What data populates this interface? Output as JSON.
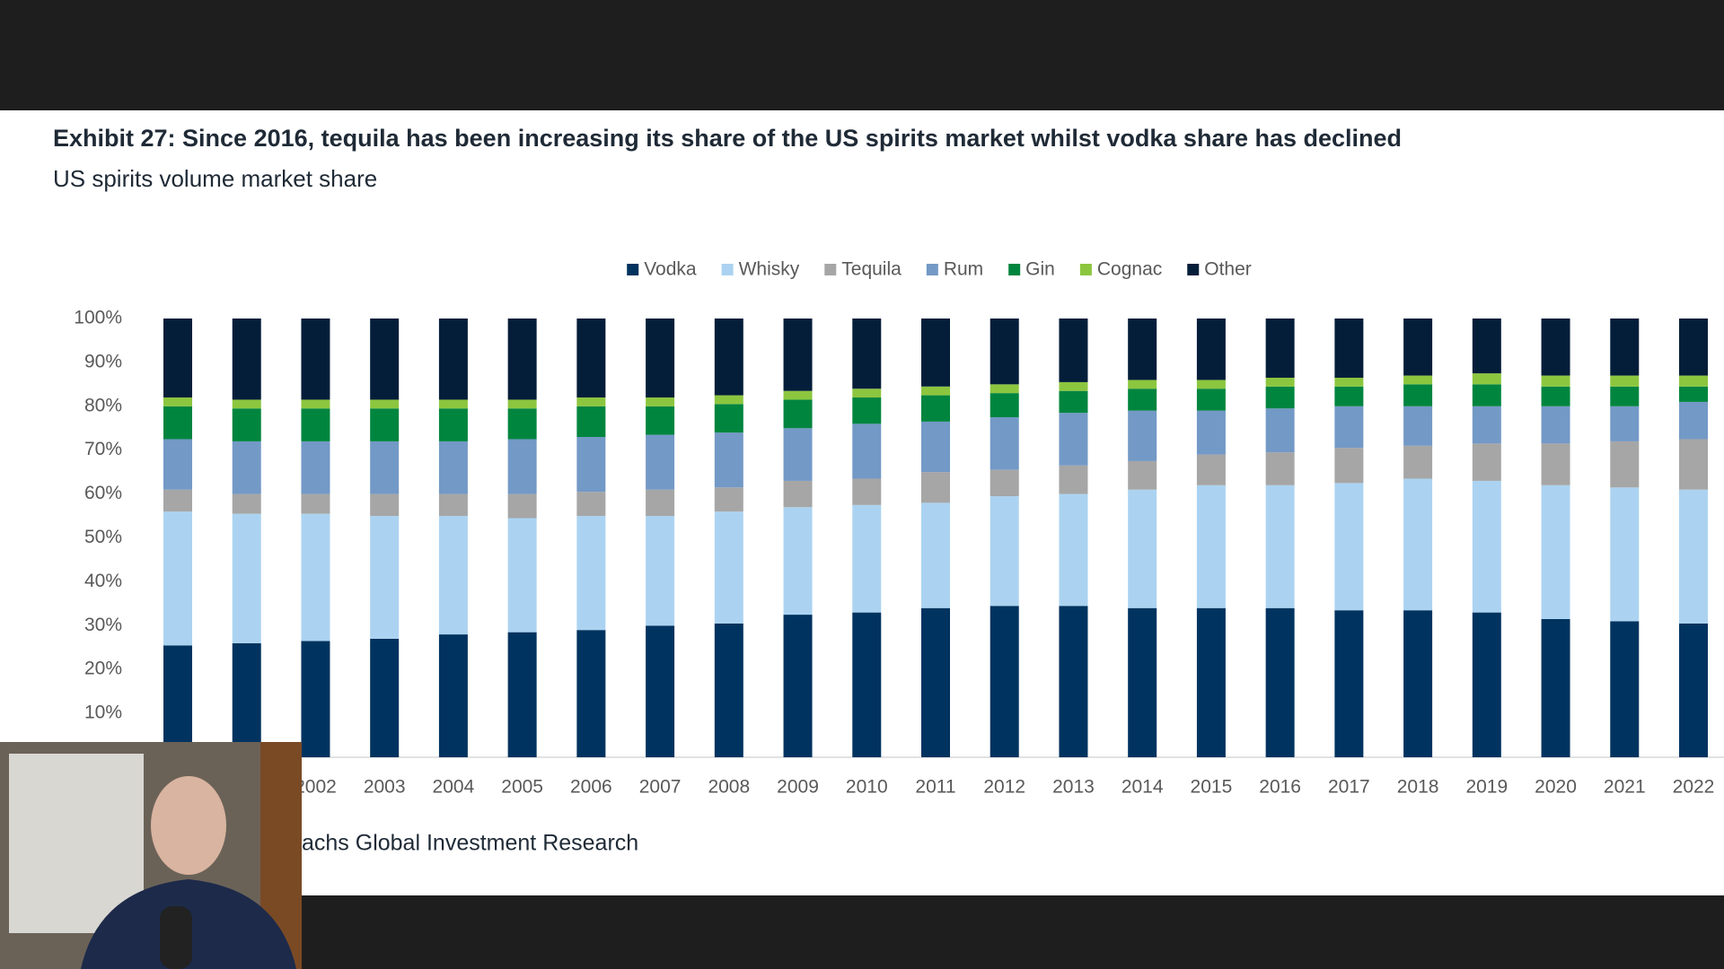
{
  "chart_data": {
    "type": "stacked_bar",
    "title": "Exhibit 27: Since 2016, tequila has been increasing its share of the US spirits market whilst vodka share has declined",
    "subtitle": "US spirits volume market share",
    "source": "achs Global Investment Research",
    "categories": [
      null,
      null,
      "2002",
      "2003",
      "2004",
      "2005",
      "2006",
      "2007",
      "2008",
      "2009",
      "2010",
      "2011",
      "2012",
      "2013",
      "2014",
      "2015",
      "2016",
      "2017",
      "2018",
      "2019",
      "2020",
      "2021",
      "2022"
    ],
    "series": [
      {
        "name": "Vodka",
        "color": "#00335f",
        "values": [
          25.5,
          26,
          26.5,
          27,
          28,
          28.5,
          29,
          30,
          30.5,
          32.5,
          33,
          34,
          34.5,
          34.5,
          34,
          34,
          34,
          33.5,
          33.5,
          33,
          31.5,
          31,
          30.5
        ]
      },
      {
        "name": "Whisky",
        "color": "#abd3f1",
        "values": [
          30.5,
          29.5,
          29,
          28,
          27,
          26,
          26,
          25,
          25.5,
          24.5,
          24.5,
          24,
          25,
          25.5,
          27,
          28,
          28,
          29,
          30,
          30,
          30.5,
          30.5,
          30.5
        ]
      },
      {
        "name": "Tequila",
        "color": "#a6a6a6",
        "values": [
          5,
          4.5,
          4.5,
          5,
          5,
          5.5,
          5.5,
          6,
          5.5,
          6,
          6,
          7,
          6,
          6.5,
          6.5,
          7,
          7.5,
          8,
          7.5,
          8.5,
          9.5,
          10.5,
          11.5
        ]
      },
      {
        "name": "Rum",
        "color": "#7399c6",
        "values": [
          11.5,
          12,
          12,
          12,
          12,
          12.5,
          12.5,
          12.5,
          12.5,
          12,
          12.5,
          11.5,
          12,
          12,
          11.5,
          10,
          10,
          9.5,
          9,
          8.5,
          8.5,
          8,
          8.5
        ]
      },
      {
        "name": "Gin",
        "color": "#00853f",
        "values": [
          7.5,
          7.5,
          7.5,
          7.5,
          7.5,
          7,
          7,
          6.5,
          6.5,
          6.5,
          6,
          6,
          5.5,
          5,
          5,
          5,
          5,
          4.5,
          5,
          5,
          4.5,
          4.5,
          3.5
        ]
      },
      {
        "name": "Cognac",
        "color": "#8cc63f",
        "values": [
          2,
          2,
          2,
          2,
          2,
          2,
          2,
          2,
          2,
          2,
          2,
          2,
          2,
          2,
          2,
          2,
          2,
          2,
          2,
          2.5,
          2.5,
          2.5,
          2.5
        ]
      },
      {
        "name": "Other",
        "color": "#041e3a",
        "values": [
          18,
          18.5,
          18.5,
          18.5,
          18.5,
          18.5,
          18,
          18,
          17.5,
          16.5,
          16,
          15.5,
          15,
          14.5,
          14,
          14,
          13.5,
          13.5,
          13,
          12.5,
          13,
          13,
          13
        ]
      }
    ],
    "ylim": [
      0,
      100
    ],
    "yticks": [
      {
        "value": 10,
        "label": "10%"
      },
      {
        "value": 20,
        "label": "20%"
      },
      {
        "value": 30,
        "label": "30%"
      },
      {
        "value": 40,
        "label": "40%"
      },
      {
        "value": 50,
        "label": "50%"
      },
      {
        "value": 60,
        "label": "60%"
      },
      {
        "value": 70,
        "label": "70%"
      },
      {
        "value": 80,
        "label": "80%"
      },
      {
        "value": 90,
        "label": "90%"
      },
      {
        "value": 100,
        "label": "100%"
      }
    ],
    "legend": "top"
  }
}
